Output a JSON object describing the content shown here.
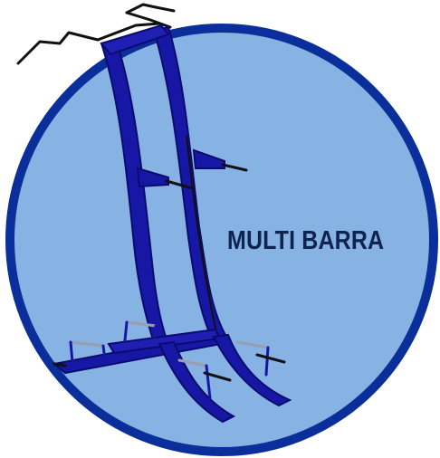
{
  "product": {
    "label": "MULTI BARRA"
  },
  "colors": {
    "badge_fill": "#86b2e4",
    "badge_border": "#0a2f9a",
    "frame_blue": "#1717a6",
    "frame_dark": "#0b0b6e",
    "bar_black": "#111111",
    "rung_gray": "#9a9fb0",
    "label_text": "#0e2350"
  },
  "icons": {
    "equipment": "multi-bar-station-illustration"
  }
}
